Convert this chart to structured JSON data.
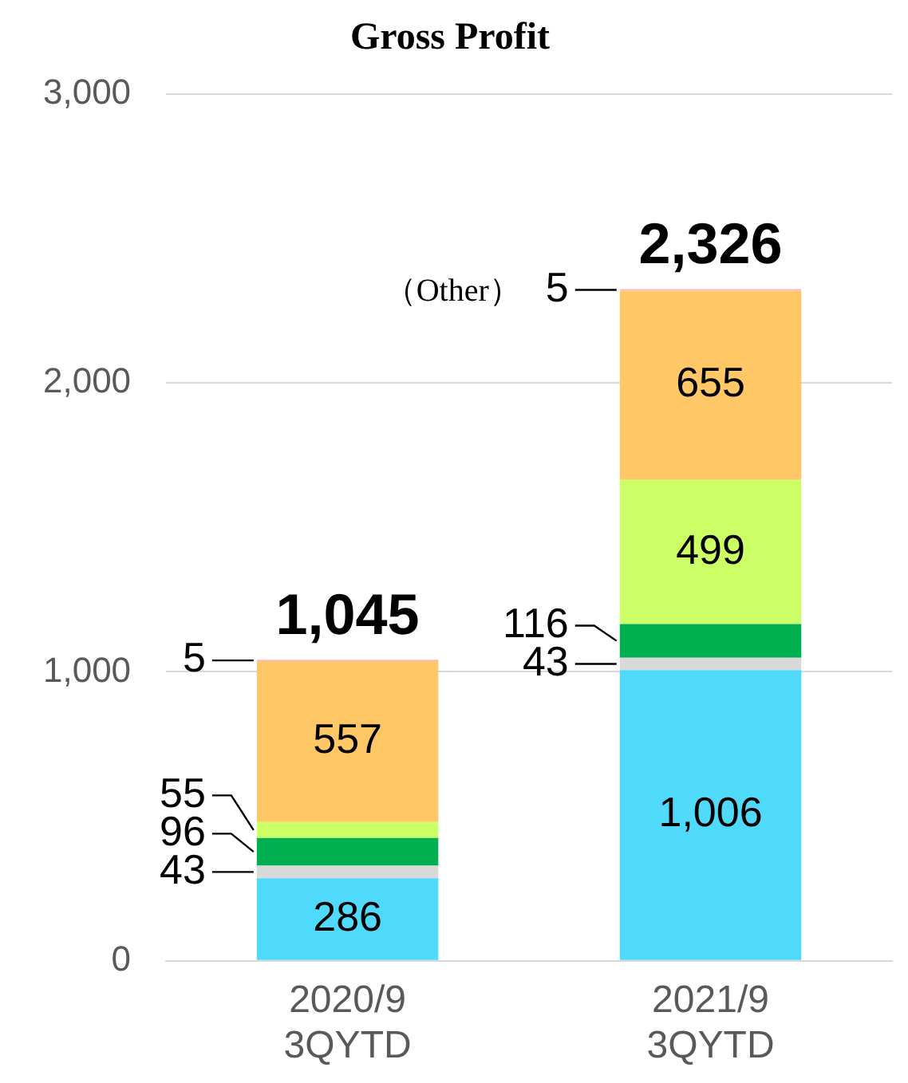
{
  "chart_data": {
    "type": "bar",
    "title": "Gross Profit",
    "stacked": true,
    "categories": [
      "2020/9\n3QYTD",
      "2021/9\n3QYTD"
    ],
    "series": [
      {
        "color": "#4fd9fa",
        "values": [
          286,
          1006
        ],
        "value_labels": [
          "286",
          "1,006"
        ]
      },
      {
        "color": "#d9d9d9",
        "values": [
          43,
          43
        ],
        "value_labels": [
          "43",
          "43"
        ]
      },
      {
        "color": "#00b050",
        "values": [
          96,
          116
        ],
        "value_labels": [
          "96",
          "116"
        ]
      },
      {
        "color": "#ccff66",
        "values": [
          55,
          499
        ],
        "value_labels": [
          "55",
          "499"
        ]
      },
      {
        "color": "#ffc766",
        "values": [
          557,
          655
        ],
        "value_labels": [
          "557",
          "655"
        ]
      },
      {
        "color": "#f4b8c8",
        "values": [
          5,
          5
        ],
        "value_labels": [
          "5",
          "5"
        ]
      }
    ],
    "totals": [
      "1,045",
      "2,326"
    ],
    "annotations": [
      "（Other）"
    ],
    "ylim": [
      0,
      3000
    ],
    "yticks": [
      {
        "value": 0,
        "label": "0"
      },
      {
        "value": 1000,
        "label": "1,000"
      },
      {
        "value": 2000,
        "label": "2,000"
      },
      {
        "value": 3000,
        "label": "3,000"
      }
    ],
    "grid": "y",
    "legend": false
  }
}
